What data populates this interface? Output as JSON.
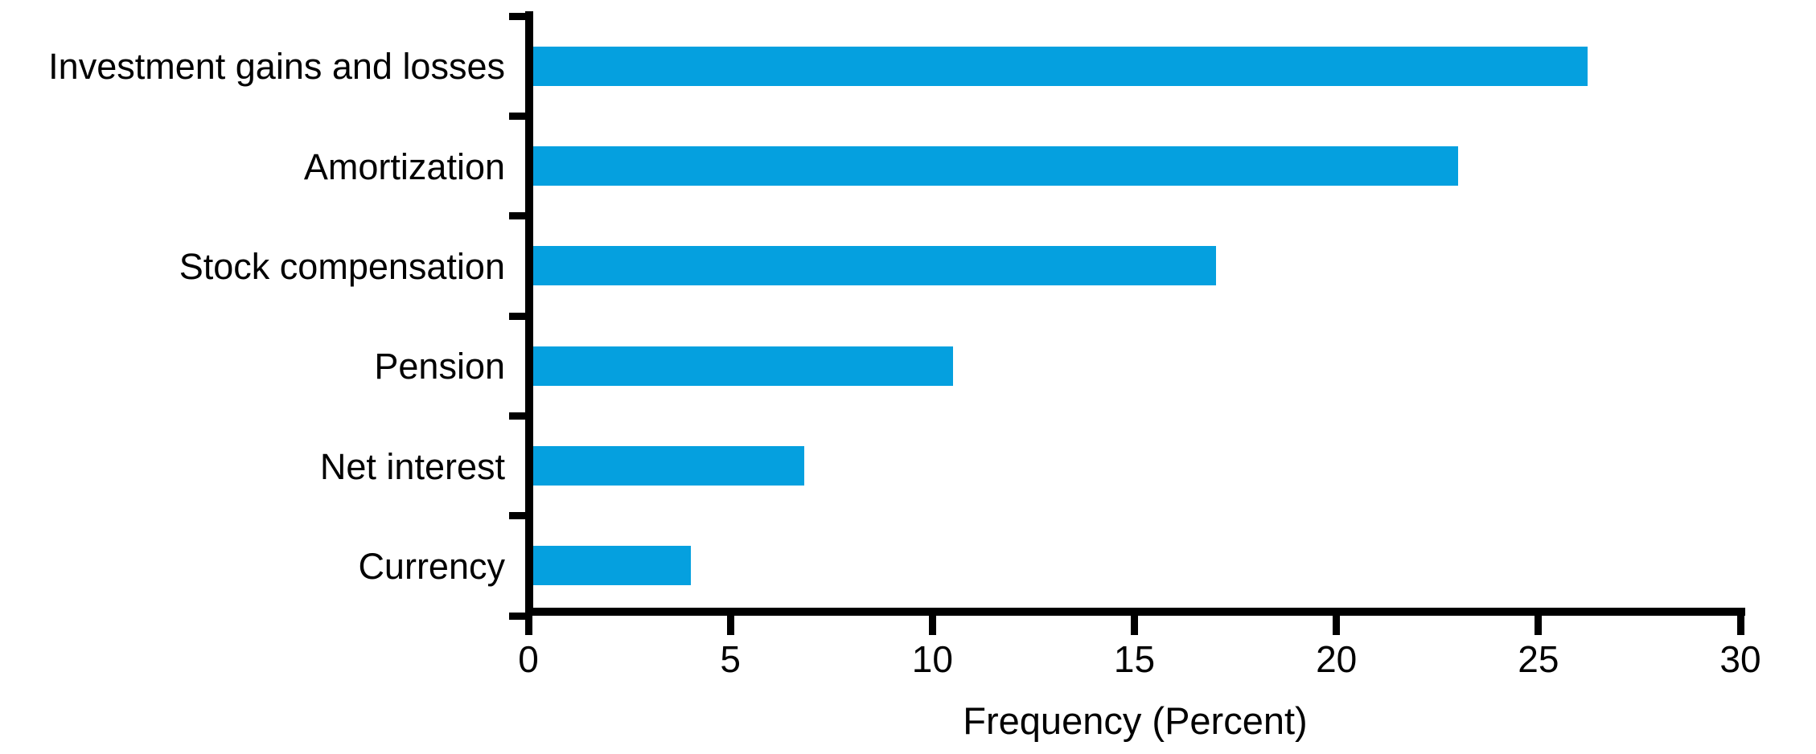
{
  "chart_data": {
    "type": "bar",
    "orientation": "horizontal",
    "categories": [
      "Investment gains and losses",
      "Amortization",
      "Stock compensation",
      "Pension",
      "Net interest",
      "Currency"
    ],
    "values": [
      26.2,
      23,
      17,
      10.5,
      6.8,
      4
    ],
    "title": "",
    "xlabel": "Frequency (Percent)",
    "ylabel": "",
    "xlim": [
      0,
      30
    ],
    "xticks": [
      0,
      5,
      10,
      15,
      20,
      25,
      30
    ],
    "grid": false,
    "legend_position": "none",
    "bar_color": "#05A0DF",
    "axis_color": "#000000",
    "text_color": "#000000"
  }
}
